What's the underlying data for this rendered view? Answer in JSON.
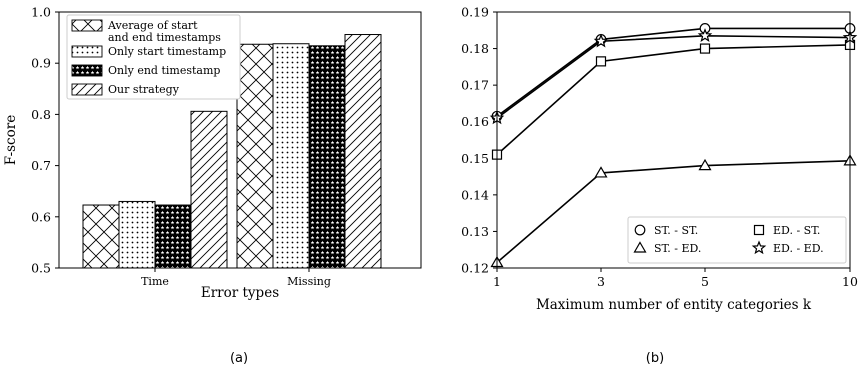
{
  "captions": {
    "a": "(a)",
    "b": "(b)"
  },
  "chart_data": [
    {
      "type": "bar",
      "categories": [
        "Time",
        "Missing"
      ],
      "series": [
        {
          "name": "Average of start\nand end timestamps",
          "pattern": "crosshatch",
          "values": [
            0.623,
            0.937
          ]
        },
        {
          "name": "Only start timestamp",
          "pattern": "dots",
          "values": [
            0.63,
            0.938
          ]
        },
        {
          "name": "Only end timestamp",
          "pattern": "stars",
          "values": [
            0.623,
            0.934
          ]
        },
        {
          "name": "Our strategy",
          "pattern": "diagonal",
          "values": [
            0.806,
            0.956
          ]
        }
      ],
      "xlabel": "Error types",
      "ylabel": "F-score",
      "ylim": [
        0.5,
        1.0
      ],
      "yticks": [
        "0.5",
        "0.6",
        "0.7",
        "0.8",
        "0.9",
        "1.0"
      ],
      "legend_position": "top-left",
      "grid": false
    },
    {
      "type": "line",
      "x": [
        1,
        3,
        5,
        10
      ],
      "xticks": [
        "1",
        "3",
        "5",
        "10"
      ],
      "series": [
        {
          "name": "ST. - ST.",
          "marker": "circle",
          "values": [
            0.1615,
            0.1825,
            0.1855,
            0.1855
          ]
        },
        {
          "name": "ST. - ED.",
          "marker": "triangle",
          "values": [
            0.1215,
            0.146,
            0.148,
            0.1493
          ]
        },
        {
          "name": "ED. - ST.",
          "marker": "square",
          "values": [
            0.151,
            0.1765,
            0.18,
            0.181
          ]
        },
        {
          "name": "ED. - ED.",
          "marker": "star",
          "values": [
            0.161,
            0.182,
            0.1835,
            0.183
          ]
        }
      ],
      "xlabel": "Maximum number of entity categories k",
      "ylabel": "",
      "ylim": [
        0.12,
        0.19
      ],
      "yticks": [
        "0.12",
        "0.13",
        "0.14",
        "0.15",
        "0.16",
        "0.17",
        "0.18",
        "0.19"
      ],
      "legend_position": "bottom-right",
      "grid": false
    }
  ]
}
